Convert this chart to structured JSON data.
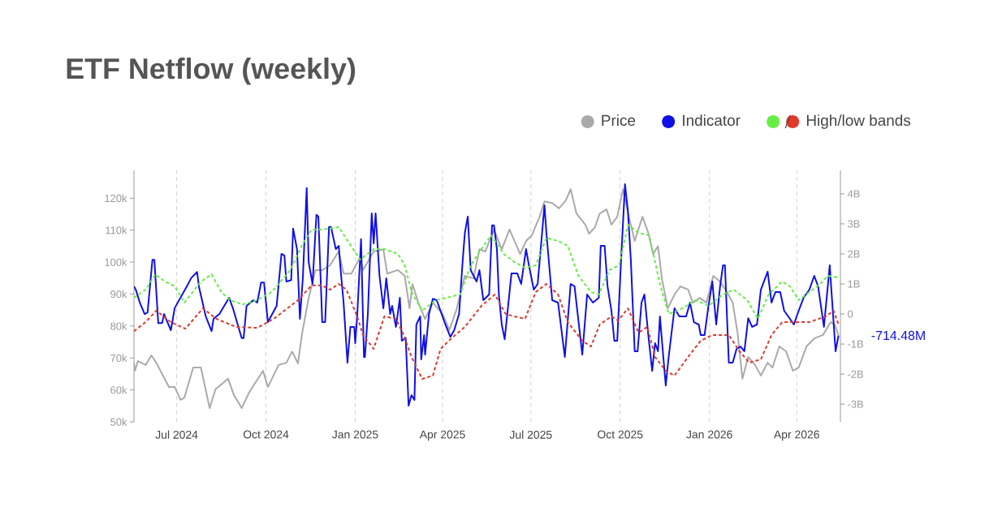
{
  "chart_data": {
    "type": "line",
    "title": "ETF Netflow (weekly)",
    "legend": "top right",
    "grid": "x",
    "xlim": [
      "2024-05-18",
      "2026-05-16"
    ],
    "xticks": [
      {
        "value": "2024-07-01",
        "label": "Jul 2024"
      },
      {
        "value": "2024-10-01",
        "label": "Oct 2024"
      },
      {
        "value": "2025-01-01",
        "label": "Jan 2025"
      },
      {
        "value": "2025-04-01",
        "label": "Apr 2025"
      },
      {
        "value": "2025-07-01",
        "label": "Jul 2025"
      },
      {
        "value": "2025-10-01",
        "label": "Oct 2025"
      },
      {
        "value": "2026-01-01",
        "label": "Jan 2026"
      },
      {
        "value": "2026-04-01",
        "label": "Apr 2026"
      }
    ],
    "ylim": [
      50000,
      128700
    ],
    "yticks": [
      {
        "value": 50000,
        "label": "50k"
      },
      {
        "value": 60000,
        "label": "60k"
      },
      {
        "value": 70000,
        "label": "70k"
      },
      {
        "value": 80000,
        "label": "80k"
      },
      {
        "value": 90000,
        "label": "90k"
      },
      {
        "value": 100000,
        "label": "100k"
      },
      {
        "value": 110000,
        "label": "110k"
      },
      {
        "value": 120000,
        "label": "120k"
      }
    ],
    "y2lim": [
      -3590000000.0,
      4780000000.0
    ],
    "y2ticks": [
      {
        "value": -3000000000.0,
        "label": "-3B"
      },
      {
        "value": -2000000000.0,
        "label": "-2B"
      },
      {
        "value": -1000000000.0,
        "label": "-1B"
      },
      0,
      {
        "value": 1000000000.0,
        "label": "1B"
      },
      {
        "value": 2000000000.0,
        "label": "2B"
      },
      {
        "value": 3000000000.0,
        "label": "3B"
      },
      {
        "value": 4000000000.0,
        "label": "4B"
      }
    ],
    "annotations": [
      "-714.48M"
    ],
    "series": [
      {
        "name": "Price",
        "color": "#aaaaaa",
        "line_style": "solid",
        "x": [
          "2024-05-18",
          "2024-05-19",
          "2024-05-22",
          "2024-05-30",
          "2024-06-05",
          "2024-06-10",
          "2024-06-23",
          "2024-06-29",
          "2024-07-05",
          "2024-07-09",
          "2024-07-18",
          "2024-07-26",
          "2024-08-04",
          "2024-08-10",
          "2024-08-23",
          "2024-08-29",
          "2024-09-06",
          "2024-09-14",
          "2024-09-28",
          "2024-10-03",
          "2024-10-14",
          "2024-10-22",
          "2024-10-28",
          "2024-11-03",
          "2024-11-07",
          "2024-11-14",
          "2024-11-21",
          "2024-11-28",
          "2024-12-06",
          "2024-12-15",
          "2024-12-20",
          "2024-12-28",
          "2025-01-06",
          "2025-01-09",
          "2025-01-20",
          "2025-01-30",
          "2025-02-03",
          "2025-02-14",
          "2025-02-21",
          "2025-02-26",
          "2025-03-01",
          "2025-03-07",
          "2025-03-14",
          "2025-03-22",
          "2025-04-01",
          "2025-04-08",
          "2025-04-15",
          "2025-04-24",
          "2025-05-03",
          "2025-05-09",
          "2025-05-15",
          "2025-05-24",
          "2025-06-01",
          "2025-06-09",
          "2025-06-20",
          "2025-06-26",
          "2025-07-02",
          "2025-07-10",
          "2025-07-15",
          "2025-07-23",
          "2025-07-30",
          "2025-08-06",
          "2025-08-11",
          "2025-08-17",
          "2025-08-26",
          "2025-08-30",
          "2025-09-05",
          "2025-09-10",
          "2025-09-17",
          "2025-09-22",
          "2025-09-28",
          "2025-10-04",
          "2025-10-10",
          "2025-10-16",
          "2025-10-24",
          "2025-10-30",
          "2025-11-04",
          "2025-11-09",
          "2025-11-13",
          "2025-11-19",
          "2025-11-26",
          "2025-12-02",
          "2025-12-10",
          "2025-12-15",
          "2025-12-22",
          "2025-12-29",
          "2026-01-05",
          "2026-01-12",
          "2026-01-19",
          "2026-01-25",
          "2026-01-30",
          "2026-02-04",
          "2026-02-10",
          "2026-02-17",
          "2026-02-23",
          "2026-03-02",
          "2026-03-07",
          "2026-03-14",
          "2026-03-21",
          "2026-03-28",
          "2026-04-03",
          "2026-04-11",
          "2026-04-19",
          "2026-04-28",
          "2026-05-06",
          "2026-05-10",
          "2026-05-14"
        ],
        "values": [
          68500,
          66000,
          69000,
          67800,
          70800,
          68500,
          60900,
          60900,
          56900,
          57600,
          67000,
          67000,
          54300,
          60200,
          63500,
          58400,
          54300,
          59400,
          66000,
          60900,
          67800,
          68500,
          72000,
          68300,
          77200,
          88800,
          97500,
          97500,
          99000,
          103300,
          96400,
          96400,
          101500,
          97500,
          103300,
          104000,
          96400,
          97500,
          95700,
          85500,
          93100,
          87300,
          82200,
          87300,
          83800,
          78700,
          84800,
          95700,
          94900,
          104000,
          103300,
          110200,
          104000,
          110200,
          102500,
          106600,
          108400,
          114200,
          119000,
          118500,
          116800,
          119300,
          122800,
          115200,
          111700,
          108900,
          110900,
          115200,
          116500,
          111700,
          114200,
          122800,
          114200,
          106600,
          114200,
          109100,
          102500,
          105000,
          94900,
          85500,
          89800,
          92400,
          91400,
          87300,
          88800,
          87300,
          95700,
          93900,
          90600,
          87300,
          77900,
          63500,
          70300,
          67800,
          64500,
          68500,
          67000,
          73600,
          72100,
          66000,
          67000,
          73600,
          76100,
          77200,
          81200,
          80500,
          77200
        ]
      },
      {
        "name": "Indicator",
        "color": "#1010e6",
        "axis": "y2",
        "line_style": "solid",
        "x": [
          "2024-05-18",
          "2024-05-20",
          "2024-05-24",
          "2024-05-29",
          "2024-06-01",
          "2024-06-06",
          "2024-06-08",
          "2024-06-12",
          "2024-06-16",
          "2024-06-18",
          "2024-06-25",
          "2024-06-29",
          "2024-07-12",
          "2024-07-16",
          "2024-07-22",
          "2024-07-24",
          "2024-07-31",
          "2024-08-06",
          "2024-08-08",
          "2024-08-14",
          "2024-08-24",
          "2024-08-28",
          "2024-09-06",
          "2024-09-08",
          "2024-09-11",
          "2024-09-18",
          "2024-09-22",
          "2024-09-26",
          "2024-09-29",
          "2024-10-03",
          "2024-10-12",
          "2024-10-17",
          "2024-10-20",
          "2024-10-22",
          "2024-10-27",
          "2024-10-29",
          "2024-11-02",
          "2024-11-05",
          "2024-11-08",
          "2024-11-12",
          "2024-11-14",
          "2024-11-18",
          "2024-11-22",
          "2024-11-24",
          "2024-11-28",
          "2024-12-01",
          "2024-12-05",
          "2024-12-07",
          "2024-12-12",
          "2024-12-15",
          "2024-12-17",
          "2024-12-20",
          "2024-12-24",
          "2024-12-27",
          "2024-12-31",
          "2025-01-01",
          "2025-01-03",
          "2025-01-07",
          "2025-01-10",
          "2025-01-11",
          "2025-01-14",
          "2025-01-18",
          "2025-01-20",
          "2025-01-22",
          "2025-01-26",
          "2025-01-30",
          "2025-02-02",
          "2025-02-06",
          "2025-02-08",
          "2025-02-12",
          "2025-02-16",
          "2025-02-18",
          "2025-02-22",
          "2025-02-25",
          "2025-02-28",
          "2025-03-03",
          "2025-03-05",
          "2025-03-09",
          "2025-03-10",
          "2025-03-13",
          "2025-03-14",
          "2025-03-18",
          "2025-03-22",
          "2025-03-26",
          "2025-04-03",
          "2025-04-09",
          "2025-04-13",
          "2025-04-18",
          "2025-04-22",
          "2025-04-24",
          "2025-04-27",
          "2025-04-30",
          "2025-05-06",
          "2025-05-09",
          "2025-05-13",
          "2025-05-19",
          "2025-05-22",
          "2025-05-24",
          "2025-05-27",
          "2025-05-29",
          "2025-06-01",
          "2025-06-04",
          "2025-06-11",
          "2025-06-17",
          "2025-06-21",
          "2025-06-26",
          "2025-06-29",
          "2025-07-04",
          "2025-07-08",
          "2025-07-12",
          "2025-07-15",
          "2025-07-17",
          "2025-07-23",
          "2025-07-29",
          "2025-08-05",
          "2025-08-11",
          "2025-08-15",
          "2025-08-23",
          "2025-08-28",
          "2025-09-03",
          "2025-09-09",
          "2025-09-11",
          "2025-09-15",
          "2025-09-18",
          "2025-09-22",
          "2025-09-25",
          "2025-09-28",
          "2025-10-02",
          "2025-10-06",
          "2025-10-09",
          "2025-10-12",
          "2025-10-16",
          "2025-10-19",
          "2025-10-23",
          "2025-10-26",
          "2025-10-30",
          "2025-11-03",
          "2025-11-06",
          "2025-11-09",
          "2025-11-11",
          "2025-11-14",
          "2025-11-17",
          "2025-11-20",
          "2025-11-26",
          "2025-12-01",
          "2025-12-08",
          "2025-12-12",
          "2025-12-16",
          "2025-12-21",
          "2025-12-23",
          "2025-12-27",
          "2025-12-31",
          "2026-01-04",
          "2026-01-08",
          "2026-01-12",
          "2026-01-15",
          "2026-01-17",
          "2026-01-21",
          "2026-01-25",
          "2026-01-29",
          "2026-02-02",
          "2026-02-06",
          "2026-02-10",
          "2026-02-14",
          "2026-02-19",
          "2026-02-23",
          "2026-03-02",
          "2026-03-06",
          "2026-03-10",
          "2026-03-15",
          "2026-03-19",
          "2026-03-25",
          "2026-03-29",
          "2026-04-03",
          "2026-04-08",
          "2026-04-14",
          "2026-04-19",
          "2026-04-23",
          "2026-04-29",
          "2026-05-05",
          "2026-05-07",
          "2026-05-11",
          "2026-05-14"
        ],
        "values": [
          920000000.0,
          800000000.0,
          380000000.0,
          0,
          50000000.0,
          1800000000.0,
          1800000000.0,
          -300000000.0,
          -300000000.0,
          0,
          -540000000.0,
          200000000.0,
          950000000.0,
          1200000000.0,
          1400000000.0,
          900000000.0,
          -80000000.0,
          -570000000.0,
          -160000000.0,
          0,
          540000000.0,
          190000000.0,
          -800000000.0,
          -800000000.0,
          270000000.0,
          460000000.0,
          380000000.0,
          1050000000.0,
          1050000000.0,
          -270000000.0,
          270000000.0,
          2000000000.0,
          1950000000.0,
          1080000000.0,
          1130000000.0,
          2840000000.0,
          2160000000.0,
          -160000000.0,
          1190000000.0,
          4190000000.0,
          1730000000.0,
          1000000000.0,
          3300000000.0,
          3240000000.0,
          -270000000.0,
          -270000000.0,
          2900000000.0,
          2900000000.0,
          2160000000.0,
          2270000000.0,
          1460000000.0,
          380000000.0,
          -1620000000.0,
          -430000000.0,
          -430000000.0,
          -970000000.0,
          -80000000.0,
          2490000000.0,
          -1430000000.0,
          -1430000000.0,
          0,
          3350000000.0,
          2350000000.0,
          3350000000.0,
          1270000000.0,
          190000000.0,
          1190000000.0,
          0,
          270000000.0,
          -430000000.0,
          540000000.0,
          -890000000.0,
          -800000000.0,
          -3050000000.0,
          -2700000000.0,
          -2860000000.0,
          -350000000.0,
          -80000000.0,
          -1510000000.0,
          -700000000.0,
          -1350000000.0,
          0,
          510000000.0,
          460000000.0,
          -270000000.0,
          -760000000.0,
          -540000000.0,
          0,
          1890000000.0,
          2700000000.0,
          3240000000.0,
          1460000000.0,
          1080000000.0,
          1460000000.0,
          460000000.0,
          650000000.0,
          2950000000.0,
          2950000000.0,
          2160000000.0,
          650000000.0,
          -350000000.0,
          -840000000.0,
          1350000000.0,
          1350000000.0,
          1000000000.0,
          2160000000.0,
          1620000000.0,
          810000000.0,
          1000000000.0,
          2490000000.0,
          3620000000.0,
          2700000000.0,
          460000000.0,
          380000000.0,
          -1430000000.0,
          1000000000.0,
          920000000.0,
          -1350000000.0,
          650000000.0,
          380000000.0,
          540000000.0,
          2270000000.0,
          2270000000.0,
          920000000.0,
          110000000.0,
          -890000000.0,
          -890000000.0,
          1810000000.0,
          4320000000.0,
          3430000000.0,
          1810000000.0,
          -1240000000.0,
          -1240000000.0,
          380000000.0,
          650000000.0,
          -700000000.0,
          -1890000000.0,
          -970000000.0,
          -1240000000.0,
          -80000000.0,
          -1240000000.0,
          -2380000000.0,
          -1430000000.0,
          190000000.0,
          -80000000.0,
          -80000000.0,
          380000000.0,
          -270000000.0,
          -350000000.0,
          -700000000.0,
          -700000000.0,
          270000000.0,
          1080000000.0,
          -350000000.0,
          920000000.0,
          1620000000.0,
          1620000000.0,
          -1620000000.0,
          -1620000000.0,
          -1160000000.0,
          -1080000000.0,
          -1240000000.0,
          -140000000.0,
          -430000000.0,
          -350000000.0,
          810000000.0,
          1410000000.0,
          380000000.0,
          730000000.0,
          730000000.0,
          110000000.0,
          -160000000.0,
          -350000000.0,
          110000000.0,
          540000000.0,
          810000000.0,
          1270000000.0,
          920000000.0,
          -430000000.0,
          1620000000.0,
          650000000.0,
          -1240000000.0,
          -714480000
        ]
      },
      {
        "color": "#66ee44",
        "axis": "y2",
        "line_style": "dashed",
        "x": [
          "2024-05-18",
          "2024-05-30",
          "2024-06-09",
          "2024-06-19",
          "2024-06-29",
          "2024-07-09",
          "2024-07-26",
          "2024-08-06",
          "2024-08-16",
          "2024-08-25",
          "2024-09-07",
          "2024-09-22",
          "2024-10-07",
          "2024-10-26",
          "2024-11-08",
          "2024-11-17",
          "2024-11-28",
          "2024-12-15",
          "2024-12-26",
          "2025-01-06",
          "2025-01-20",
          "2025-01-31",
          "2025-02-14",
          "2025-02-21",
          "2025-02-28",
          "2025-03-11",
          "2025-03-25",
          "2025-04-05",
          "2025-04-19",
          "2025-04-30",
          "2025-05-11",
          "2025-05-21",
          "2025-06-03",
          "2025-06-14",
          "2025-06-25",
          "2025-07-06",
          "2025-07-17",
          "2025-07-29",
          "2025-08-08",
          "2025-08-19",
          "2025-09-01",
          "2025-09-09",
          "2025-09-20",
          "2025-09-30",
          "2025-10-09",
          "2025-10-20",
          "2025-10-31",
          "2025-11-11",
          "2025-11-20",
          "2025-12-04",
          "2025-12-18",
          "2025-12-31",
          "2026-01-15",
          "2026-01-26",
          "2026-02-09",
          "2026-02-20",
          "2026-03-03",
          "2026-03-17",
          "2026-03-25",
          "2026-04-03",
          "2026-04-14",
          "2026-04-25",
          "2026-05-03",
          "2026-05-13"
        ],
        "values": [
          540000000.0,
          810000000.0,
          1320000000.0,
          1080000000.0,
          920000000.0,
          380000000.0,
          1080000000.0,
          1320000000.0,
          730000000.0,
          460000000.0,
          320000000.0,
          460000000.0,
          730000000.0,
          1460000000.0,
          2350000000.0,
          2810000000.0,
          2810000000.0,
          2890000000.0,
          2350000000.0,
          1810000000.0,
          2160000000.0,
          2160000000.0,
          2000000000.0,
          1620000000.0,
          730000000.0,
          110000000.0,
          460000000.0,
          540000000.0,
          650000000.0,
          1620000000.0,
          2160000000.0,
          2620000000.0,
          2000000000.0,
          1730000000.0,
          1540000000.0,
          1620000000.0,
          2540000000.0,
          2430000000.0,
          2270000000.0,
          1270000000.0,
          730000000.0,
          650000000.0,
          1460000000.0,
          1620000000.0,
          2970000000.0,
          2700000000.0,
          2620000000.0,
          1000000000.0,
          0,
          190000000.0,
          460000000.0,
          270000000.0,
          650000000.0,
          810000000.0,
          460000000.0,
          -160000000.0,
          650000000.0,
          1080000000.0,
          920000000.0,
          460000000.0,
          730000000.0,
          1000000000.0,
          1270000000.0,
          1220000000.0
        ]
      },
      {
        "name": "High/low bands",
        "color": "#e03a2a",
        "axis": "y2",
        "line_style": "dashed",
        "x": [
          "2024-05-18",
          "2024-05-30",
          "2024-06-10",
          "2024-06-25",
          "2024-07-10",
          "2024-07-28",
          "2024-08-11",
          "2024-08-31",
          "2024-09-22",
          "2024-10-09",
          "2024-11-03",
          "2024-11-17",
          "2024-11-28",
          "2024-12-06",
          "2024-12-15",
          "2024-12-23",
          "2025-01-03",
          "2025-01-09",
          "2025-01-20",
          "2025-01-31",
          "2025-02-12",
          "2025-02-20",
          "2025-02-28",
          "2025-03-11",
          "2025-03-22",
          "2025-03-30",
          "2025-04-09",
          "2025-04-24",
          "2025-05-11",
          "2025-05-25",
          "2025-06-05",
          "2025-06-14",
          "2025-06-25",
          "2025-07-06",
          "2025-07-17",
          "2025-07-29",
          "2025-08-08",
          "2025-08-23",
          "2025-09-01",
          "2025-09-10",
          "2025-09-22",
          "2025-09-29",
          "2025-10-09",
          "2025-10-20",
          "2025-10-29",
          "2025-11-06",
          "2025-11-17",
          "2025-11-26",
          "2025-12-10",
          "2025-12-23",
          "2026-01-04",
          "2026-01-21",
          "2026-02-01",
          "2026-02-11",
          "2026-02-23",
          "2026-03-06",
          "2026-03-17",
          "2026-03-28",
          "2026-04-14",
          "2026-05-01",
          "2026-05-09",
          "2026-05-14"
        ],
        "values": [
          -570000000.0,
          -270000000.0,
          110000000.0,
          -270000000.0,
          -490000000.0,
          190000000.0,
          -160000000.0,
          -430000000.0,
          -460000000.0,
          -160000000.0,
          460000000.0,
          950000000.0,
          950000000.0,
          810000000.0,
          1000000000.0,
          810000000.0,
          -80000000.0,
          -700000000.0,
          -1160000000.0,
          -80000000.0,
          -160000000.0,
          -700000000.0,
          -1430000000.0,
          -2160000000.0,
          -2050000000.0,
          -1160000000.0,
          -840000000.0,
          -430000000.0,
          270000000.0,
          650000000.0,
          0,
          -80000000.0,
          -160000000.0,
          730000000.0,
          1000000000.0,
          650000000.0,
          -270000000.0,
          -890000000.0,
          -1080000000.0,
          -350000000.0,
          -80000000.0,
          -220000000.0,
          190000000.0,
          -620000000.0,
          -430000000.0,
          -1430000000.0,
          -1890000000.0,
          -2050000000.0,
          -1430000000.0,
          -890000000.0,
          -700000000.0,
          -700000000.0,
          -1240000000.0,
          -1620000000.0,
          -1510000000.0,
          -700000000.0,
          -270000000.0,
          -270000000.0,
          -270000000.0,
          -80000000.0,
          110000000.0,
          -350000000.0
        ]
      }
    ]
  }
}
